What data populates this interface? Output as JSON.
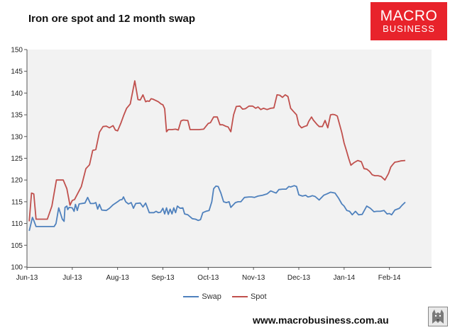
{
  "header": {
    "title": "Iron ore spot and 12 month swap",
    "logo_line1": "MACRO",
    "logo_line2": "BUSINESS"
  },
  "footer": {
    "website": "www.macrobusiness.com.au",
    "badge_icon": "wolf-badge-icon"
  },
  "colors": {
    "swap": "#4f81bd",
    "spot": "#c0504d",
    "plot_background": "#f2f2f2",
    "logo": "#e8232b"
  },
  "chart_data": {
    "type": "line",
    "title": "Iron ore spot and 12 month swap",
    "xlabel": "",
    "ylabel": "",
    "ylim": [
      100,
      150
    ],
    "yticks": [
      100,
      105,
      110,
      115,
      120,
      125,
      130,
      135,
      140,
      145,
      150
    ],
    "grid": false,
    "legend": "bottom",
    "x_unit": "months since Jun-13",
    "categories": [
      "Jun-13",
      "Jul-13",
      "Aug-13",
      "Sep-13",
      "Oct-13",
      "Nov-13",
      "Dec-13",
      "Jan-14",
      "Feb-14"
    ],
    "series": [
      {
        "name": "Swap",
        "color": "#4f81bd",
        "x": [
          0.05,
          0.08,
          0.12,
          0.15,
          0.2,
          0.3,
          0.5,
          0.6,
          0.64,
          0.7,
          0.78,
          0.82,
          0.84,
          0.88,
          0.9,
          0.93,
          1.0,
          1.04,
          1.07,
          1.11,
          1.15,
          1.28,
          1.34,
          1.4,
          1.47,
          1.52,
          1.56,
          1.6,
          1.65,
          1.75,
          1.82,
          1.9,
          2.0,
          2.05,
          2.1,
          2.13,
          2.18,
          2.24,
          2.3,
          2.35,
          2.4,
          2.5,
          2.56,
          2.62,
          2.7,
          2.8,
          2.85,
          2.9,
          2.95,
          3.0,
          3.04,
          3.08,
          3.12,
          3.16,
          3.2,
          3.24,
          3.28,
          3.32,
          3.38,
          3.44,
          3.48,
          3.55,
          3.65,
          3.72,
          3.78,
          3.83,
          3.88,
          3.95,
          4.02,
          4.08,
          4.12,
          4.17,
          4.22,
          4.28,
          4.34,
          4.4,
          4.46,
          4.5,
          4.6,
          4.66,
          4.72,
          4.8,
          4.9,
          4.96,
          5.02,
          5.1,
          5.2,
          5.3,
          5.38,
          5.45,
          5.5,
          5.56,
          5.64,
          5.72,
          5.78,
          5.82,
          5.9,
          5.95,
          6.0,
          6.08,
          6.15,
          6.2,
          6.25,
          6.3,
          6.36,
          6.45,
          6.55,
          6.62,
          6.7,
          6.8,
          6.88,
          6.95,
          7.0,
          7.06,
          7.12,
          7.18,
          7.25,
          7.32,
          7.4,
          7.5,
          7.58,
          7.66,
          7.72,
          7.8,
          7.88,
          7.95,
          8.0,
          8.05,
          8.12,
          8.22,
          8.28,
          8.35
        ],
        "values": [
          108.3,
          109.6,
          111.4,
          110.7,
          109.3,
          109.3,
          109.3,
          109.3,
          110.0,
          113.6,
          111.0,
          110.5,
          113.7,
          114.0,
          113.2,
          113.7,
          113.6,
          112.8,
          114.4,
          113.0,
          114.5,
          114.7,
          116.0,
          114.6,
          114.6,
          114.8,
          113.3,
          114.4,
          113.1,
          113.0,
          113.5,
          114.3,
          115.0,
          115.4,
          115.5,
          116.1,
          115.0,
          114.5,
          114.8,
          113.5,
          114.6,
          114.7,
          113.8,
          114.7,
          112.5,
          112.5,
          112.8,
          112.5,
          112.6,
          113.5,
          112.2,
          113.6,
          112.1,
          113.3,
          112.2,
          113.6,
          112.5,
          114.0,
          113.5,
          113.6,
          112.2,
          112.0,
          111.1,
          111.0,
          110.7,
          110.9,
          112.5,
          112.8,
          113.0,
          115.0,
          118.0,
          118.6,
          118.5,
          117.0,
          115.0,
          114.8,
          115.0,
          113.7,
          114.8,
          115.0,
          115.0,
          116.0,
          116.1,
          116.1,
          116.0,
          116.3,
          116.5,
          116.8,
          117.5,
          117.2,
          117.0,
          117.8,
          117.9,
          117.9,
          118.5,
          118.4,
          118.7,
          118.5,
          116.6,
          116.3,
          116.5,
          116.1,
          116.2,
          116.4,
          116.2,
          115.4,
          116.5,
          116.8,
          117.2,
          117.0,
          115.8,
          114.5,
          114.0,
          113.0,
          112.8,
          112.0,
          112.8,
          112.0,
          112.1,
          114.0,
          113.5,
          112.7,
          112.8,
          112.8,
          113.0,
          112.2,
          112.3,
          112.0,
          113.1,
          113.5,
          114.2,
          114.9
        ]
      },
      {
        "name": "Spot",
        "color": "#c0504d",
        "x": [
          0.05,
          0.1,
          0.15,
          0.2,
          0.27,
          0.35,
          0.45,
          0.55,
          0.65,
          0.7,
          0.8,
          0.88,
          0.95,
          1.0,
          1.05,
          1.1,
          1.2,
          1.3,
          1.38,
          1.45,
          1.52,
          1.6,
          1.68,
          1.75,
          1.82,
          1.9,
          1.95,
          2.0,
          2.07,
          2.14,
          2.2,
          2.28,
          2.38,
          2.45,
          2.5,
          2.56,
          2.62,
          2.66,
          2.7,
          2.74,
          2.78,
          2.84,
          2.9,
          2.96,
          3.0,
          3.04,
          3.08,
          3.12,
          3.2,
          3.28,
          3.34,
          3.4,
          3.45,
          3.55,
          3.6,
          3.7,
          3.8,
          3.9,
          4.0,
          4.05,
          4.12,
          4.2,
          4.26,
          4.32,
          4.38,
          4.44,
          4.5,
          4.56,
          4.62,
          4.7,
          4.76,
          4.82,
          4.9,
          4.98,
          5.05,
          5.1,
          5.16,
          5.22,
          5.3,
          5.38,
          5.45,
          5.52,
          5.58,
          5.64,
          5.7,
          5.76,
          5.82,
          5.88,
          5.95,
          6.0,
          6.06,
          6.12,
          6.18,
          6.22,
          6.28,
          6.32,
          6.4,
          6.45,
          6.52,
          6.58,
          6.64,
          6.7,
          6.75,
          6.8,
          6.85,
          6.9,
          6.95,
          7.0,
          7.05,
          7.1,
          7.15,
          7.22,
          7.3,
          7.38,
          7.44,
          7.5,
          7.56,
          7.62,
          7.68,
          7.75,
          7.82,
          7.9,
          7.98,
          8.03,
          8.07,
          8.12,
          8.18,
          8.25,
          8.35
        ],
        "values": [
          110.5,
          117.0,
          116.8,
          111.0,
          111.0,
          111.0,
          111.0,
          114.0,
          120.0,
          120.0,
          120.0,
          118.0,
          114.2,
          115.3,
          115.5,
          116.5,
          118.5,
          122.6,
          123.5,
          126.8,
          127.0,
          131.0,
          132.3,
          132.4,
          132.0,
          132.5,
          131.5,
          131.3,
          133.0,
          135.0,
          136.5,
          137.5,
          142.8,
          138.5,
          138.4,
          139.6,
          138.0,
          138.2,
          138.1,
          138.7,
          138.6,
          138.3,
          138.0,
          137.5,
          137.3,
          136.4,
          131.1,
          131.6,
          131.6,
          131.7,
          131.5,
          133.6,
          133.8,
          133.7,
          131.6,
          131.6,
          131.6,
          131.7,
          133.0,
          133.2,
          134.5,
          134.5,
          132.7,
          132.7,
          132.4,
          132.2,
          131.1,
          135.0,
          136.9,
          137.0,
          136.3,
          136.4,
          137.0,
          137.0,
          136.5,
          136.8,
          136.2,
          136.5,
          136.2,
          136.5,
          136.6,
          139.6,
          139.5,
          139.0,
          139.6,
          139.2,
          136.5,
          135.8,
          135.0,
          132.7,
          132.0,
          132.3,
          132.5,
          133.5,
          134.5,
          133.8,
          132.8,
          132.3,
          132.3,
          133.7,
          132.0,
          135.0,
          135.1,
          135.0,
          134.7,
          132.8,
          130.9,
          128.5,
          126.8,
          125.0,
          123.4,
          124.0,
          124.5,
          124.2,
          122.6,
          122.5,
          122.0,
          121.2,
          121.0,
          121.0,
          120.8,
          120.0,
          121.5,
          123.0,
          123.5,
          124.1,
          124.2,
          124.4,
          124.5
        ]
      }
    ]
  }
}
